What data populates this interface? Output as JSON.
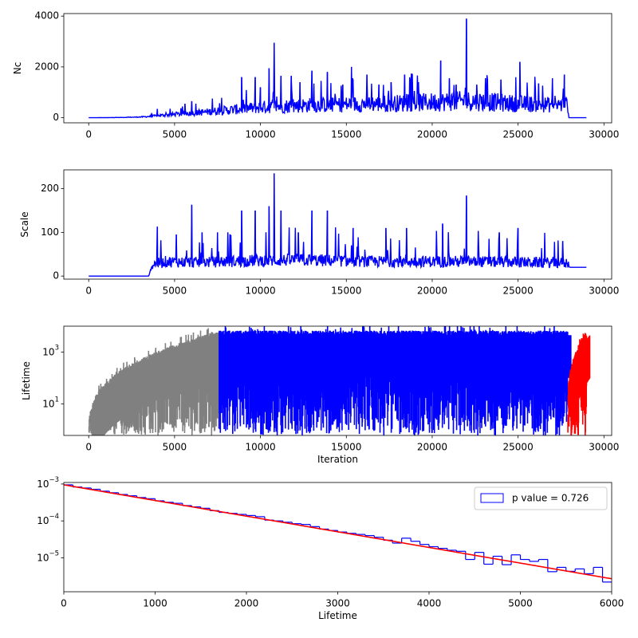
{
  "chart_data": [
    {
      "type": "line",
      "ylabel": "Nc",
      "xlim": [
        -1450,
        30450
      ],
      "ylim": [
        -200,
        4100
      ],
      "xticks": [
        0,
        5000,
        10000,
        15000,
        20000,
        25000,
        30000
      ],
      "xtick_labels": [
        "0",
        "5000",
        "10000",
        "15000",
        "20000",
        "25000",
        "30000"
      ],
      "yticks": [
        0,
        2000,
        4000
      ],
      "ytick_labels": [
        "0",
        "2000",
        "4000"
      ],
      "grid": false,
      "series": [
        {
          "color": "#0000ff",
          "x": [
            0,
            1000,
            2000,
            3000,
            3500,
            4000,
            5000,
            6000,
            7000,
            8000,
            9000,
            10000,
            11000,
            12000,
            13000,
            14000,
            15000,
            16000,
            17000,
            18000,
            19000,
            20000,
            21000,
            22000,
            23000,
            24000,
            25000,
            26000,
            27000,
            27900,
            27950,
            29000
          ],
          "y": [
            0,
            3,
            10,
            25,
            40,
            70,
            110,
            150,
            200,
            250,
            300,
            350,
            380,
            400,
            420,
            430,
            440,
            460,
            470,
            480,
            500,
            520,
            540,
            560,
            540,
            500,
            470,
            450,
            430,
            420,
            0,
            0
          ],
          "spikes": [
            [
              4000,
              350
            ],
            [
              5600,
              550
            ],
            [
              6000,
              650
            ],
            [
              7200,
              750
            ],
            [
              8900,
              1600
            ],
            [
              9700,
              1600
            ],
            [
              10000,
              1200
            ],
            [
              10500,
              1950
            ],
            [
              10800,
              2950
            ],
            [
              11200,
              1650
            ],
            [
              11800,
              1650
            ],
            [
              12300,
              1400
            ],
            [
              13000,
              1850
            ],
            [
              13900,
              1800
            ],
            [
              14800,
              1300
            ],
            [
              15300,
              2000
            ],
            [
              16200,
              1700
            ],
            [
              16900,
              1300
            ],
            [
              17600,
              1400
            ],
            [
              18400,
              1700
            ],
            [
              19200,
              1400
            ],
            [
              20500,
              2250
            ],
            [
              21000,
              1550
            ],
            [
              21400,
              1300
            ],
            [
              22000,
              3900
            ],
            [
              22600,
              1300
            ],
            [
              23100,
              1550
            ],
            [
              24000,
              1500
            ],
            [
              25100,
              2200
            ],
            [
              26200,
              1350
            ],
            [
              27000,
              1550
            ],
            [
              27700,
              1700
            ]
          ]
        }
      ]
    },
    {
      "type": "line",
      "ylabel": "Scale",
      "xlim": [
        -1450,
        30450
      ],
      "ylim": [
        -7,
        243
      ],
      "xticks": [
        0,
        5000,
        10000,
        15000,
        20000,
        25000,
        30000
      ],
      "xtick_labels": [
        "0",
        "5000",
        "10000",
        "15000",
        "20000",
        "25000",
        "30000"
      ],
      "yticks": [
        0,
        100,
        200
      ],
      "ytick_labels": [
        "0",
        "100",
        "200"
      ],
      "grid": false,
      "series": [
        {
          "color": "#0000ff",
          "x": [
            0,
            3500,
            3600,
            3800,
            4500,
            6000,
            8000,
            10000,
            12000,
            14000,
            16000,
            18000,
            20000,
            22000,
            24000,
            26000,
            27900,
            28000,
            29000
          ],
          "y": [
            0,
            0,
            15,
            25,
            30,
            28,
            30,
            32,
            33,
            32,
            30,
            30,
            30,
            30,
            29,
            28,
            27,
            20,
            20
          ],
          "spikes": [
            [
              4000,
              113
            ],
            [
              5100,
              95
            ],
            [
              6000,
              163
            ],
            [
              6600,
              100
            ],
            [
              7500,
              100
            ],
            [
              8100,
              100
            ],
            [
              8900,
              150
            ],
            [
              9700,
              150
            ],
            [
              10500,
              160
            ],
            [
              10800,
              235
            ],
            [
              11200,
              150
            ],
            [
              12200,
              100
            ],
            [
              13000,
              150
            ],
            [
              13900,
              150
            ],
            [
              15400,
              110
            ],
            [
              17300,
              110
            ],
            [
              18500,
              110
            ],
            [
              20600,
              120
            ],
            [
              22000,
              184
            ],
            [
              23900,
              100
            ],
            [
              25000,
              110
            ],
            [
              27600,
              80
            ]
          ]
        }
      ]
    },
    {
      "type": "line",
      "ylabel": "Lifetime",
      "xlabel": "Iteration",
      "xlim": [
        -1450,
        30450
      ],
      "yscale": "log",
      "ylim": [
        0.6,
        10000
      ],
      "xticks": [
        0,
        5000,
        10000,
        15000,
        20000,
        25000,
        30000
      ],
      "xtick_labels": [
        "0",
        "5000",
        "10000",
        "15000",
        "20000",
        "25000",
        "30000"
      ],
      "yticks": [
        10,
        1000
      ],
      "ytick_labels": [
        "10^1",
        "10^3"
      ],
      "grid": false,
      "segments": [
        {
          "color": "#808080",
          "x_range": [
            0,
            7600
          ],
          "env_start": 0.6,
          "env_end": 5000
        },
        {
          "color": "#0000ff",
          "x_range": [
            7600,
            27900
          ],
          "env_start": 5000,
          "env_end": 5000
        },
        {
          "color": "#ff0000",
          "x_range": [
            27900,
            29000
          ],
          "env_start": 5,
          "env_end": 5000
        }
      ]
    },
    {
      "type": "histogram",
      "xlabel": "Lifetime",
      "xlim": [
        0,
        6000
      ],
      "yscale": "log",
      "ylim": [
        1.2e-06,
        0.0011
      ],
      "xticks": [
        0,
        1000,
        2000,
        3000,
        4000,
        5000,
        6000
      ],
      "xtick_labels": [
        "0",
        "1000",
        "2000",
        "3000",
        "4000",
        "5000",
        "6000"
      ],
      "yticks": [
        1e-05,
        0.0001,
        0.001
      ],
      "ytick_labels": [
        "10^-5",
        "10^-4",
        "10^-3"
      ],
      "grid": false,
      "legend": {
        "label": "p value = 0.726",
        "position": "top-right"
      },
      "bin_width": 100,
      "hist_values": [
        0.00095,
        0.00083,
        0.00078,
        0.00072,
        0.00064,
        0.00058,
        0.00052,
        0.00048,
        0.00043,
        0.0004,
        0.00035,
        0.00032,
        0.0003,
        0.00026,
        0.00024,
        0.00022,
        0.00019,
        0.00017,
        0.00016,
        0.00015,
        0.00014,
        0.00013,
        0.000105,
        0.0001,
        9.2e-05,
        8.4e-05,
        8e-05,
        7e-05,
        6e-05,
        5.5e-05,
        5e-05,
        4.6e-05,
        4.3e-05,
        4e-05,
        3.6e-05,
        3e-05,
        2.5e-05,
        3.4e-05,
        2.8e-05,
        2.3e-05,
        2e-05,
        1.8e-05,
        1.6e-05,
        1.5e-05,
        9e-06,
        1.4e-05,
        6.7e-06,
        1.1e-05,
        6.5e-06,
        1.2e-05,
        9e-06,
        8e-06,
        9e-06,
        4.2e-06,
        5.5e-06,
        4.3e-06,
        5e-06,
        3.7e-06,
        5.5e-06,
        2.2e-06
      ],
      "fit": {
        "color": "#ff0000",
        "x": [
          0,
          6000
        ],
        "y": [
          0.00095,
          2.7e-06
        ]
      },
      "hist_color": "#0000ff"
    }
  ]
}
